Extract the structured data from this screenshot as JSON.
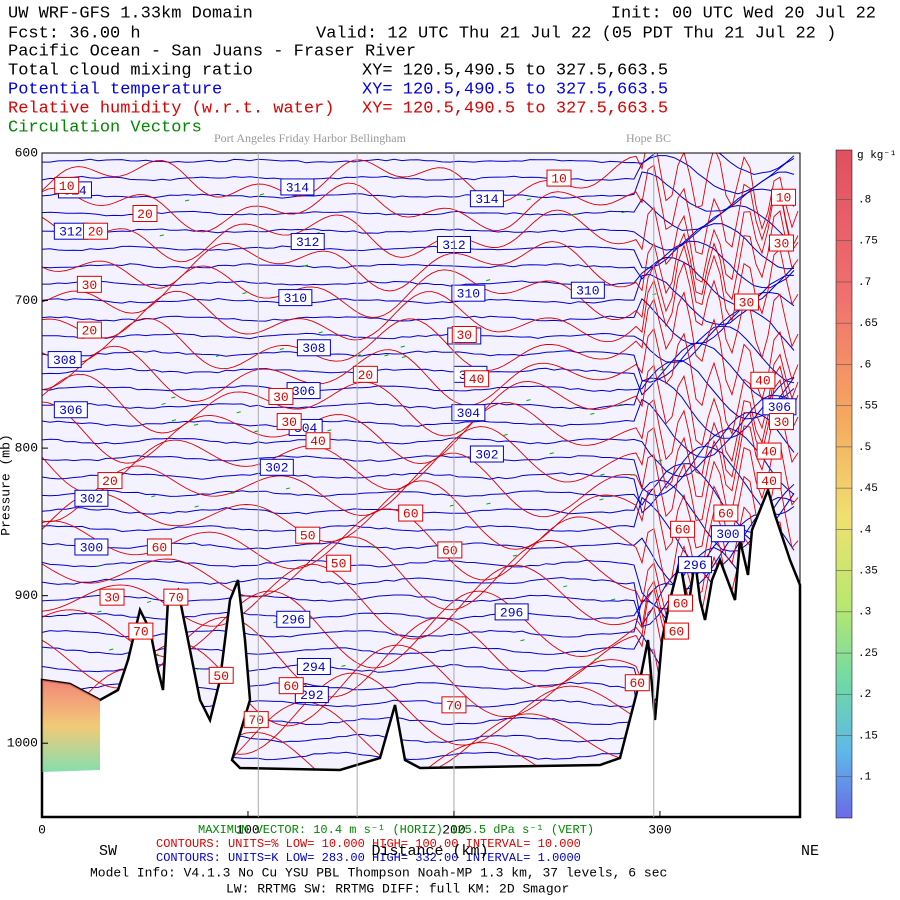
{
  "chart_data": {
    "type": "cross-section",
    "header": {
      "title": "UW WRF-GFS 1.33km Domain",
      "init": "Init: 00 UTC Wed 20 Jul 22",
      "fcst": "Fcst:   36.00 h",
      "valid": "Valid: 12 UTC Thu 21 Jul 22   (05 PDT Thu 21 Jul 22  )",
      "region": "Pacific Ocean - San Juans - Fraser River",
      "fields": [
        {
          "name": "Total cloud mixing ratio",
          "xy": "XY= 120.5,490.5 to 327.5,663.5",
          "color": "#000000"
        },
        {
          "name": "Potential temperature",
          "xy": "XY= 120.5,490.5 to 327.5,663.5",
          "color": "#0000dd"
        },
        {
          "name": "Relative humidity (w.r.t. water)",
          "xy": "XY= 120.5,490.5 to 327.5,663.5",
          "color": "#dd0000"
        },
        {
          "name": "Circulation Vectors",
          "color": "#008800"
        }
      ]
    },
    "stations": [
      "Port Angeles Friday Harbor Bellingham",
      "Hope BC"
    ],
    "x_label": "Distance (km)",
    "y_label": "Pressure (mb)",
    "left_end": "SW",
    "right_end": "NE",
    "xlim": [
      0,
      368
    ],
    "ylim": [
      1050,
      600
    ],
    "xticks": [
      0,
      100,
      200,
      300
    ],
    "yticks": [
      600,
      700,
      800,
      900,
      1000
    ],
    "station_lines": [
      105,
      153,
      200,
      297
    ],
    "theta": {
      "color": "#0000cc",
      "labels": [
        {
          "value": 314,
          "x": 16,
          "p": 625
        },
        {
          "value": 314,
          "x": 124,
          "p": 623
        },
        {
          "value": 314,
          "x": 216,
          "p": 631
        },
        {
          "value": 312,
          "x": 14,
          "p": 653
        },
        {
          "value": 312,
          "x": 129,
          "p": 660
        },
        {
          "value": 312,
          "x": 200,
          "p": 662
        },
        {
          "value": 310,
          "x": 123,
          "p": 698
        },
        {
          "value": 310,
          "x": 207,
          "p": 695
        },
        {
          "value": 310,
          "x": 265,
          "p": 693
        },
        {
          "value": 308,
          "x": 11,
          "p": 740
        },
        {
          "value": 308,
          "x": 132,
          "p": 732
        },
        {
          "value": 308,
          "x": 205,
          "p": 724
        },
        {
          "value": 306,
          "x": 14,
          "p": 774
        },
        {
          "value": 306,
          "x": 127,
          "p": 761
        },
        {
          "value": 306,
          "x": 208,
          "p": 750
        },
        {
          "value": 306,
          "x": 358,
          "p": 772
        },
        {
          "value": 304,
          "x": 128,
          "p": 786
        },
        {
          "value": 304,
          "x": 207,
          "p": 776
        },
        {
          "value": 302,
          "x": 114,
          "p": 813
        },
        {
          "value": 302,
          "x": 216,
          "p": 804
        },
        {
          "value": 302,
          "x": 24,
          "p": 834
        },
        {
          "value": 300,
          "x": 24,
          "p": 867
        },
        {
          "value": 300,
          "x": 333,
          "p": 858
        },
        {
          "value": 296,
          "x": 122,
          "p": 916
        },
        {
          "value": 296,
          "x": 228,
          "p": 911
        },
        {
          "value": 296,
          "x": 317,
          "p": 879
        },
        {
          "value": 294,
          "x": 132,
          "p": 948
        },
        {
          "value": 292,
          "x": 131,
          "p": 967
        }
      ]
    },
    "rh": {
      "color": "#dd0000",
      "labels": [
        {
          "value": 10,
          "x": 12,
          "p": 622
        },
        {
          "value": 10,
          "x": 251,
          "p": 617
        },
        {
          "value": 10,
          "x": 360,
          "p": 630
        },
        {
          "value": 20,
          "x": 50,
          "p": 641
        },
        {
          "value": 20,
          "x": 26,
          "p": 653
        },
        {
          "value": 30,
          "x": 23,
          "p": 689
        },
        {
          "value": 20,
          "x": 23,
          "p": 720
        },
        {
          "value": 30,
          "x": 359,
          "p": 661
        },
        {
          "value": 30,
          "x": 342,
          "p": 701
        },
        {
          "value": 30,
          "x": 205,
          "p": 723
        },
        {
          "value": 20,
          "x": 157,
          "p": 750
        },
        {
          "value": 40,
          "x": 211,
          "p": 753
        },
        {
          "value": 40,
          "x": 350,
          "p": 754
        },
        {
          "value": 30,
          "x": 116,
          "p": 765
        },
        {
          "value": 30,
          "x": 120,
          "p": 782
        },
        {
          "value": 40,
          "x": 134,
          "p": 795
        },
        {
          "value": 30,
          "x": 359,
          "p": 782
        },
        {
          "value": 40,
          "x": 353,
          "p": 802
        },
        {
          "value": 20,
          "x": 33,
          "p": 822
        },
        {
          "value": 40,
          "x": 353,
          "p": 822
        },
        {
          "value": 60,
          "x": 179,
          "p": 844
        },
        {
          "value": 50,
          "x": 129,
          "p": 859
        },
        {
          "value": 60,
          "x": 198,
          "p": 869
        },
        {
          "value": 50,
          "x": 144,
          "p": 878
        },
        {
          "value": 60,
          "x": 57,
          "p": 867
        },
        {
          "value": 60,
          "x": 311,
          "p": 855
        },
        {
          "value": 60,
          "x": 332,
          "p": 844
        },
        {
          "value": 30,
          "x": 34,
          "p": 901
        },
        {
          "value": 70,
          "x": 65,
          "p": 901
        },
        {
          "value": 70,
          "x": 48,
          "p": 924
        },
        {
          "value": 60,
          "x": 310,
          "p": 905
        },
        {
          "value": 60,
          "x": 308,
          "p": 924
        },
        {
          "value": 50,
          "x": 87,
          "p": 954
        },
        {
          "value": 60,
          "x": 121,
          "p": 961
        },
        {
          "value": 70,
          "x": 200,
          "p": 974
        },
        {
          "value": 60,
          "x": 289,
          "p": 959
        },
        {
          "value": 70,
          "x": 104,
          "p": 984
        }
      ]
    },
    "colorbar": {
      "label": "g kg⁻¹",
      "lim": [
        0.05,
        0.86
      ],
      "ticks": [
        {
          "value": 0.1,
          "label": ".1"
        },
        {
          "value": 0.15,
          "label": ".15"
        },
        {
          "value": 0.2,
          "label": ".2"
        },
        {
          "value": 0.25,
          "label": ".25"
        },
        {
          "value": 0.3,
          "label": ".3"
        },
        {
          "value": 0.35,
          "label": ".35"
        },
        {
          "value": 0.4,
          "label": ".4"
        },
        {
          "value": 0.45,
          "label": ".45"
        },
        {
          "value": 0.5,
          "label": ".5"
        },
        {
          "value": 0.55,
          "label": ".55"
        },
        {
          "value": 0.6,
          "label": ".6"
        },
        {
          "value": 0.65,
          "label": ".65"
        },
        {
          "value": 0.7,
          "label": ".7"
        },
        {
          "value": 0.75,
          "label": ".75"
        },
        {
          "value": 0.8,
          "label": ".8"
        }
      ]
    },
    "footer": {
      "vector": "MAXIMUM VECTOR:  10.4 m s⁻¹ (HORIZ)        125.5 dPa s⁻¹ (VERT)",
      "rh_contours": "CONTOURS:  UNITS=%  LOW=  10.000     HIGH=  100.00     INTERVAL=   10.000",
      "theta_contours": "CONTOURS:  UNITS=K  LOW=  283.00     HIGH=  332.00     INTERVAL=   1.0000",
      "model": "Model Info: V4.1.3    No Cu   YSU PBL  Thompson    Noah-MP   1.3 km,   37 levels,    6 sec",
      "physics": "LW: RRTMG  SW: RRTMG    DIFF: full   KM: 2D Smagor"
    }
  }
}
